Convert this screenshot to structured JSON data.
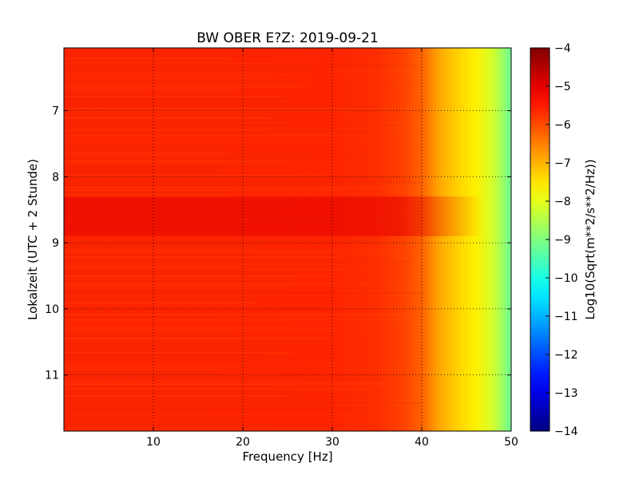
{
  "chart_data": {
    "type": "heatmap",
    "title": "BW OBER E?Z: 2019-09-21",
    "xlabel": "Frequency [Hz]",
    "ylabel": "Lokalzeit (UTC + 2 Stunde)",
    "xlim": [
      0,
      50
    ],
    "ylim": [
      11.85,
      6.05
    ],
    "y_inverted": true,
    "xticks": [
      10,
      20,
      30,
      40,
      50
    ],
    "xtick_labels": [
      "10",
      "20",
      "30",
      "40",
      "50"
    ],
    "yticks": [
      7,
      8,
      9,
      10,
      11
    ],
    "ytick_labels": [
      "7",
      "8",
      "9",
      "10",
      "11"
    ],
    "grid": true,
    "grid_style": "dotted",
    "colormap": "jet",
    "colorbar": {
      "label": "Log10(Sqrt(m**2/s**2/Hz))",
      "range": [
        -14,
        -4
      ],
      "ticks": [
        -4,
        -5,
        -6,
        -7,
        -8,
        -9,
        -10,
        -11,
        -12,
        -13,
        -14
      ],
      "tick_labels": [
        "−4",
        "−5",
        "−6",
        "−7",
        "−8",
        "−9",
        "−10",
        "−11",
        "−12",
        "−13",
        "−14"
      ]
    },
    "spectral_profile": {
      "frequency_hz": [
        0,
        5,
        10,
        20,
        30,
        35,
        38,
        40,
        42,
        44,
        46,
        48,
        50
      ],
      "log10_amplitude": [
        -5.6,
        -5.6,
        -5.6,
        -5.6,
        -5.6,
        -5.7,
        -5.9,
        -6.2,
        -6.9,
        -7.3,
        -7.6,
        -8.2,
        -9.2
      ]
    },
    "features": [
      {
        "name": "high-energy band",
        "time_range": [
          8.3,
          8.9
        ],
        "frequency_range": [
          0,
          47
        ],
        "log10_amplitude": -5.0
      }
    ]
  }
}
